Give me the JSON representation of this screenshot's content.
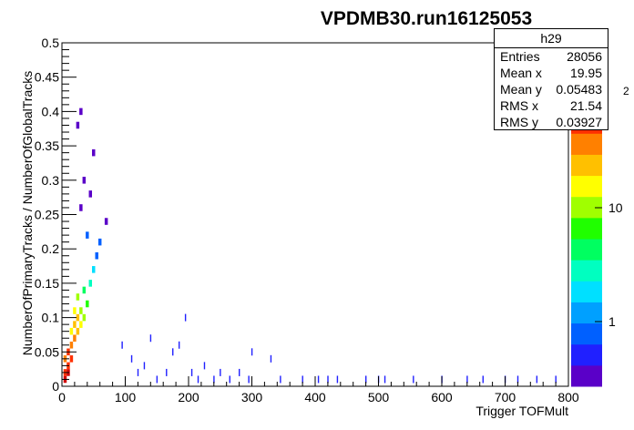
{
  "chart_data": {
    "type": "heatmap",
    "title": "VPDMB30.run16125053",
    "xlabel": "Trigger TOFMult",
    "ylabel": "NumberOfPrimaryTracks / NumberOfGlobalTracks",
    "xlim": [
      0,
      800
    ],
    "ylim": [
      0,
      0.5
    ],
    "x_ticks": [
      "0",
      "100",
      "200",
      "300",
      "400",
      "500",
      "600",
      "700",
      "800"
    ],
    "y_ticks": [
      "0",
      "0.05",
      "0.1",
      "0.15",
      "0.2",
      "0.25",
      "0.3",
      "0.35",
      "0.4",
      "0.45",
      "0.5"
    ],
    "z_scale": "log",
    "z_ticks": [
      "1",
      "10"
    ],
    "z_truncated_label": "2",
    "grid": false,
    "palette": [
      "#5a00c8",
      "#2020ff",
      "#0060ff",
      "#00a0ff",
      "#00e0ff",
      "#00ffc0",
      "#00ff60",
      "#20ff00",
      "#a0ff00",
      "#ffff00",
      "#ffc000",
      "#ff8000",
      "#ff3000",
      "#d00000"
    ],
    "core_cells": [
      {
        "x": 5,
        "y": 0.01,
        "z": 300
      },
      {
        "x": 5,
        "y": 0.02,
        "z": 250
      },
      {
        "x": 10,
        "y": 0.02,
        "z": 300
      },
      {
        "x": 10,
        "y": 0.03,
        "z": 250
      },
      {
        "x": 5,
        "y": 0.04,
        "z": 150
      },
      {
        "x": 10,
        "y": 0.05,
        "z": 200
      },
      {
        "x": 15,
        "y": 0.04,
        "z": 200
      },
      {
        "x": 15,
        "y": 0.06,
        "z": 150
      },
      {
        "x": 20,
        "y": 0.07,
        "z": 120
      },
      {
        "x": 25,
        "y": 0.08,
        "z": 100
      },
      {
        "x": 20,
        "y": 0.09,
        "z": 90
      },
      {
        "x": 25,
        "y": 0.1,
        "z": 80
      },
      {
        "x": 30,
        "y": 0.09,
        "z": 60
      },
      {
        "x": 30,
        "y": 0.11,
        "z": 40
      },
      {
        "x": 15,
        "y": 0.08,
        "z": 70
      },
      {
        "x": 20,
        "y": 0.11,
        "z": 50
      },
      {
        "x": 25,
        "y": 0.13,
        "z": 30
      },
      {
        "x": 35,
        "y": 0.1,
        "z": 35
      },
      {
        "x": 40,
        "y": 0.12,
        "z": 20
      },
      {
        "x": 35,
        "y": 0.14,
        "z": 15
      },
      {
        "x": 45,
        "y": 0.15,
        "z": 8
      },
      {
        "x": 50,
        "y": 0.17,
        "z": 5
      },
      {
        "x": 55,
        "y": 0.19,
        "z": 3
      },
      {
        "x": 60,
        "y": 0.21,
        "z": 2
      },
      {
        "x": 40,
        "y": 0.22,
        "z": 2
      },
      {
        "x": 30,
        "y": 0.26,
        "z": 1
      },
      {
        "x": 70,
        "y": 0.24,
        "z": 1
      },
      {
        "x": 45,
        "y": 0.28,
        "z": 1
      },
      {
        "x": 35,
        "y": 0.3,
        "z": 1
      },
      {
        "x": 30,
        "y": 0.4,
        "z": 1
      },
      {
        "x": 25,
        "y": 0.38,
        "z": 1
      },
      {
        "x": 50,
        "y": 0.34,
        "z": 1
      }
    ],
    "outlier_points": [
      [
        95,
        0.06
      ],
      [
        110,
        0.04
      ],
      [
        120,
        0.02
      ],
      [
        130,
        0.03
      ],
      [
        140,
        0.07
      ],
      [
        150,
        0.01
      ],
      [
        165,
        0.02
      ],
      [
        175,
        0.05
      ],
      [
        185,
        0.06
      ],
      [
        195,
        0.1
      ],
      [
        205,
        0.02
      ],
      [
        215,
        0.01
      ],
      [
        225,
        0.03
      ],
      [
        240,
        0.01
      ],
      [
        250,
        0.02
      ],
      [
        265,
        0.01
      ],
      [
        280,
        0.02
      ],
      [
        295,
        0.01
      ],
      [
        300,
        0.05
      ],
      [
        330,
        0.04
      ],
      [
        345,
        0.01
      ],
      [
        380,
        0.01
      ],
      [
        405,
        0.01
      ],
      [
        420,
        0.01
      ],
      [
        435,
        0.01
      ],
      [
        480,
        0.01
      ],
      [
        500,
        0.01
      ],
      [
        510,
        0.01
      ],
      [
        555,
        0.01
      ],
      [
        600,
        0.01
      ],
      [
        640,
        0.01
      ],
      [
        665,
        0.01
      ],
      [
        700,
        0.01
      ],
      [
        720,
        0.01
      ],
      [
        750,
        0.01
      ],
      [
        780,
        0.01
      ]
    ]
  },
  "stats": {
    "name": "h29",
    "rows": [
      {
        "label": "Entries",
        "value": "28056"
      },
      {
        "label": "Mean x",
        "value": "19.95"
      },
      {
        "label": "Mean y",
        "value": "0.05483"
      },
      {
        "label": "RMS x",
        "value": "21.54"
      },
      {
        "label": "RMS y",
        "value": "0.03927"
      }
    ]
  }
}
